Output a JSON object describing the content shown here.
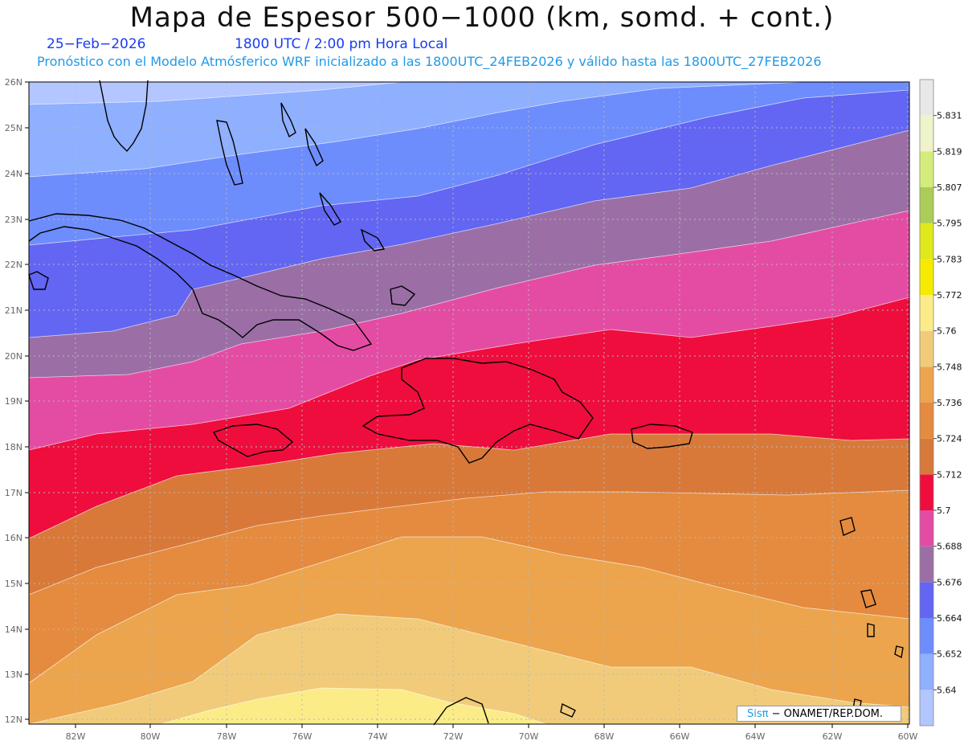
{
  "header": {
    "title": "Mapa de Espesor 500−1000 (km, somd. + cont.)",
    "date": "25−Feb−2026",
    "time": "1800 UTC / 2:00 pm Hora Local",
    "subtitle": "Pronóstico con el Modelo Atmósferico WRF inicializado a las 1800UTC_24FEB2026 y válido hasta las  1800UTC_27FEB2026"
  },
  "credit": {
    "brand": "Sisπ",
    "text": "− ONAMET/REP.DOM."
  },
  "map": {
    "lon_ticks": [
      "82W",
      "80W",
      "78W",
      "76W",
      "74W",
      "72W",
      "70W",
      "68W",
      "66W",
      "64W",
      "62W",
      "60W"
    ],
    "lat_ticks": [
      "26N",
      "25N",
      "24N",
      "23N",
      "22N",
      "21N",
      "20N",
      "19N",
      "18N",
      "17N",
      "16N",
      "15N",
      "14N",
      "13N",
      "12N"
    ],
    "bands": [
      {
        "name": "5.64",
        "color": "#b3c6ff"
      },
      {
        "name": "5.652",
        "color": "#8fafff"
      },
      {
        "name": "5.664",
        "color": "#6e8dfc"
      },
      {
        "name": "5.676",
        "color": "#6266f2"
      },
      {
        "name": "5.688",
        "color": "#9b6fa6"
      },
      {
        "name": "5.7",
        "color": "#e44ca3"
      },
      {
        "name": "5.712",
        "color": "#ef0d3d"
      },
      {
        "name": "5.724",
        "color": "#d8793a"
      },
      {
        "name": "5.736",
        "color": "#e48b3f"
      },
      {
        "name": "5.748",
        "color": "#eca54d"
      },
      {
        "name": "5.76",
        "color": "#f1cb7a"
      },
      {
        "name": "5.772",
        "color": "#fbec88"
      }
    ]
  },
  "colorbar": {
    "swatches": [
      "#b3c6ff",
      "#8fafff",
      "#6e8dfc",
      "#6266f2",
      "#9b6fa6",
      "#e44ca3",
      "#ef0d3d",
      "#d8793a",
      "#e48b3f",
      "#eca54d",
      "#f1cb7a",
      "#fbec88",
      "#f6eb00",
      "#dfe81b",
      "#abcc59",
      "#d4ec7a",
      "#eef3c9",
      "#e8e8e8"
    ],
    "labels": [
      "5.64",
      "5.652",
      "5.664",
      "5.676",
      "5.688",
      "5.7",
      "5.712",
      "5.724",
      "5.736",
      "5.748",
      "5.76",
      "5.772",
      "5.783",
      "5.795",
      "5.807",
      "5.819",
      "5.831"
    ]
  }
}
